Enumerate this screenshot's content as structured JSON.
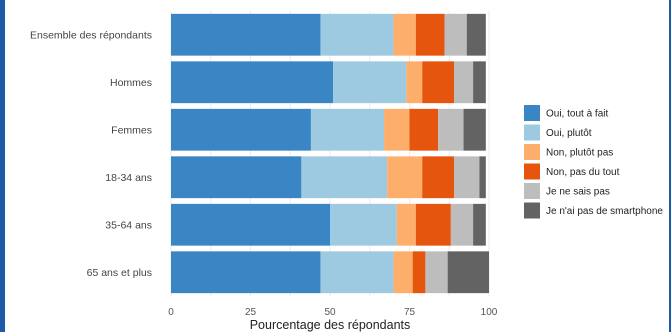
{
  "chart_data": {
    "type": "bar",
    "orientation": "horizontal",
    "stacked": true,
    "title": "",
    "xlabel": "Pourcentage des répondants",
    "ylabel": "",
    "xlim": [
      0,
      100
    ],
    "x_ticks": [
      0,
      25,
      50,
      75,
      100
    ],
    "grid": true,
    "legend_position": "right",
    "categories": [
      "Ensemble des répondants",
      "Hommes",
      "Femmes",
      "18-34 ans",
      "35-64 ans",
      "65 ans et plus"
    ],
    "series": [
      {
        "name": "Oui, tout à fait",
        "color": "#3a85c4",
        "values": [
          47,
          51,
          44,
          41,
          50,
          47
        ]
      },
      {
        "name": "Oui, plutôt",
        "color": "#9ecae1",
        "values": [
          23,
          23,
          23,
          27,
          21,
          23
        ]
      },
      {
        "name": "Non, plutôt pas",
        "color": "#fdae6b",
        "values": [
          7,
          5,
          8,
          11,
          6,
          6
        ]
      },
      {
        "name": "Non, pas du tout",
        "color": "#e6550d",
        "values": [
          9,
          10,
          9,
          10,
          11,
          4
        ]
      },
      {
        "name": "Je ne sais pas",
        "color": "#bdbdbd",
        "values": [
          7,
          6,
          8,
          8,
          7,
          7
        ]
      },
      {
        "name": "Je n'ai pas de smartphone",
        "color": "#636363",
        "values": [
          6,
          4,
          7,
          2,
          4,
          13
        ]
      }
    ]
  }
}
